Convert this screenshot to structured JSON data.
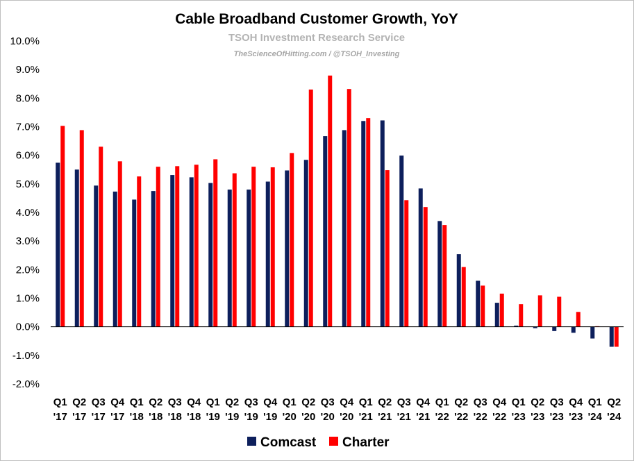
{
  "chart_data": {
    "type": "bar",
    "title": "Cable Broadband Customer Growth, YoY",
    "subtitle": "TSOH Investment Research Service",
    "subtitle2": "TheScienceOfHitting.com / @TSOH_Investing",
    "categories": [
      [
        "Q1",
        "'17"
      ],
      [
        "Q2",
        "'17"
      ],
      [
        "Q3",
        "'17"
      ],
      [
        "Q4",
        "'17"
      ],
      [
        "Q1",
        "'18"
      ],
      [
        "Q2",
        "'18"
      ],
      [
        "Q3",
        "'18"
      ],
      [
        "Q4",
        "'18"
      ],
      [
        "Q1",
        "'19"
      ],
      [
        "Q2",
        "'19"
      ],
      [
        "Q3",
        "'19"
      ],
      [
        "Q4",
        "'19"
      ],
      [
        "Q1",
        "'20"
      ],
      [
        "Q2",
        "'20"
      ],
      [
        "Q3",
        "'20"
      ],
      [
        "Q4",
        "'20"
      ],
      [
        "Q1",
        "'21"
      ],
      [
        "Q2",
        "'21"
      ],
      [
        "Q3",
        "'21"
      ],
      [
        "Q4",
        "'21"
      ],
      [
        "Q1",
        "'22"
      ],
      [
        "Q2",
        "'22"
      ],
      [
        "Q3",
        "'22"
      ],
      [
        "Q4",
        "'22"
      ],
      [
        "Q1",
        "'23"
      ],
      [
        "Q2",
        "'23"
      ],
      [
        "Q3",
        "'23"
      ],
      [
        "Q4",
        "'23"
      ],
      [
        "Q1",
        "'24"
      ],
      [
        "Q2",
        "'24"
      ]
    ],
    "series": [
      {
        "name": "Comcast",
        "color": "#0d1f5c",
        "values": [
          5.74,
          5.5,
          4.94,
          4.73,
          4.45,
          4.75,
          5.31,
          5.23,
          5.03,
          4.8,
          4.8,
          5.08,
          5.47,
          5.84,
          6.67,
          6.88,
          7.2,
          7.22,
          5.99,
          4.84,
          3.7,
          2.54,
          1.61,
          0.84,
          0.04,
          -0.05,
          -0.15,
          -0.21,
          -0.41,
          -0.7
        ]
      },
      {
        "name": "Charter",
        "color": "#ff0000",
        "values": [
          7.03,
          6.88,
          6.3,
          5.79,
          5.26,
          5.6,
          5.62,
          5.67,
          5.86,
          5.37,
          5.6,
          5.58,
          6.08,
          8.3,
          8.79,
          8.32,
          7.3,
          5.48,
          4.43,
          4.19,
          3.56,
          2.09,
          1.44,
          1.16,
          0.79,
          1.1,
          1.05,
          0.52,
          0.02,
          -0.7
        ]
      }
    ],
    "ylim": [
      -2.0,
      10.0
    ],
    "yticks": [
      "10.0%",
      "9.0%",
      "8.0%",
      "7.0%",
      "6.0%",
      "5.0%",
      "4.0%",
      "3.0%",
      "2.0%",
      "1.0%",
      "0.0%",
      "-1.0%",
      "-2.0%"
    ],
    "ytick_values": [
      10,
      9,
      8,
      7,
      6,
      5,
      4,
      3,
      2,
      1,
      0,
      -1,
      -2
    ],
    "grid": false,
    "legend_position": "bottom-center"
  }
}
